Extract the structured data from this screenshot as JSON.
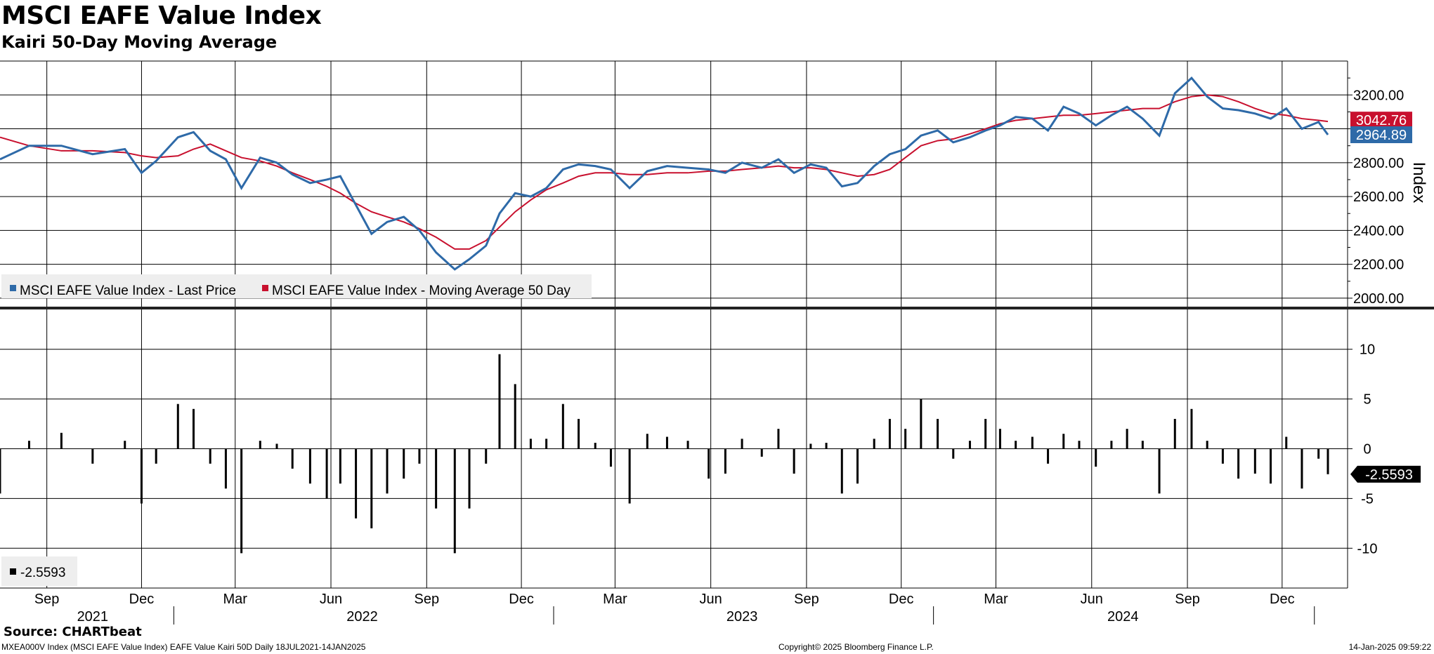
{
  "header": {
    "title": "MSCI EAFE Value Index",
    "subtitle": "Kairi 50-Day Moving Average"
  },
  "footer": {
    "source": "Source: CHARTbeat",
    "left": "MXEA000V Index (MSCI EAFE Value Index) EAFE Value Kairi 50D  Daily 18JUL2021-14JAN2025",
    "center": "Copyright© 2025 Bloomberg Finance L.P.",
    "right": "14-Jan-2025 09:59:22"
  },
  "colors": {
    "price": "#2e6aa8",
    "ma": "#c8102e",
    "kairi": "#000000",
    "grid": "#000000"
  },
  "chart_data": [
    {
      "type": "line",
      "title": "MSCI EAFE Value Index",
      "ylabel": "Index",
      "ylim": [
        1950,
        3400
      ],
      "yticks": [
        2000,
        2200,
        2400,
        2600,
        2800,
        3000,
        3200
      ],
      "ytick_labels": [
        "2000.00",
        "2200.00",
        "2400.00",
        "2600.00",
        "2800.00",
        "3000.00",
        "3200.00"
      ],
      "legend": [
        "MSCI EAFE Value Index - Last Price",
        "MSCI EAFE Value Index - Moving Average 50 Day"
      ],
      "last_labels": {
        "ma": "3042.76",
        "price": "2964.89"
      },
      "x": [
        "2021-07-18",
        "2021-08-15",
        "2021-09-15",
        "2021-10-15",
        "2021-11-15",
        "2021-12-01",
        "2021-12-15",
        "2022-01-05",
        "2022-01-20",
        "2022-02-05",
        "2022-02-20",
        "2022-03-07",
        "2022-03-25",
        "2022-04-10",
        "2022-04-25",
        "2022-05-12",
        "2022-05-28",
        "2022-06-10",
        "2022-06-25",
        "2022-07-10",
        "2022-07-25",
        "2022-08-10",
        "2022-08-25",
        "2022-09-10",
        "2022-09-28",
        "2022-10-12",
        "2022-10-28",
        "2022-11-10",
        "2022-11-25",
        "2022-12-10",
        "2022-12-25",
        "2023-01-10",
        "2023-01-25",
        "2023-02-10",
        "2023-02-25",
        "2023-03-15",
        "2023-04-01",
        "2023-04-20",
        "2023-05-10",
        "2023-05-30",
        "2023-06-15",
        "2023-07-01",
        "2023-07-20",
        "2023-08-05",
        "2023-08-20",
        "2023-09-05",
        "2023-09-20",
        "2023-10-05",
        "2023-10-20",
        "2023-11-05",
        "2023-11-20",
        "2023-12-05",
        "2023-12-20",
        "2024-01-05",
        "2024-01-20",
        "2024-02-05",
        "2024-02-20",
        "2024-03-05",
        "2024-03-20",
        "2024-04-05",
        "2024-04-20",
        "2024-05-05",
        "2024-05-20",
        "2024-06-05",
        "2024-06-20",
        "2024-07-05",
        "2024-07-20",
        "2024-08-05",
        "2024-08-20",
        "2024-09-05",
        "2024-09-20",
        "2024-10-05",
        "2024-10-20",
        "2024-11-05",
        "2024-11-20",
        "2024-12-05",
        "2024-12-20",
        "2025-01-05",
        "2025-01-14"
      ],
      "series": [
        {
          "name": "MSCI EAFE Value Index - Last Price",
          "values": [
            2820,
            2900,
            2900,
            2850,
            2880,
            2740,
            2810,
            2950,
            2980,
            2870,
            2820,
            2650,
            2830,
            2800,
            2730,
            2680,
            2700,
            2720,
            2550,
            2380,
            2450,
            2480,
            2400,
            2270,
            2170,
            2230,
            2310,
            2500,
            2620,
            2600,
            2650,
            2760,
            2790,
            2780,
            2760,
            2650,
            2750,
            2780,
            2770,
            2760,
            2740,
            2800,
            2770,
            2820,
            2740,
            2790,
            2770,
            2660,
            2680,
            2780,
            2850,
            2880,
            2960,
            2990,
            2920,
            2950,
            2990,
            3020,
            3070,
            3060,
            2990,
            3130,
            3090,
            3020,
            3080,
            3130,
            3060,
            2960,
            3210,
            3300,
            3190,
            3120,
            3110,
            3090,
            3060,
            3120,
            3000,
            3040,
            2965
          ]
        },
        {
          "name": "MSCI EAFE Value Index - Moving Average 50 Day",
          "values": [
            2950,
            2900,
            2870,
            2870,
            2860,
            2840,
            2830,
            2840,
            2880,
            2910,
            2870,
            2830,
            2810,
            2780,
            2740,
            2700,
            2660,
            2620,
            2560,
            2510,
            2480,
            2450,
            2410,
            2360,
            2290,
            2290,
            2340,
            2420,
            2510,
            2580,
            2640,
            2680,
            2720,
            2740,
            2740,
            2730,
            2730,
            2740,
            2740,
            2750,
            2750,
            2760,
            2770,
            2780,
            2770,
            2770,
            2760,
            2740,
            2720,
            2730,
            2760,
            2830,
            2900,
            2930,
            2940,
            2970,
            3000,
            3030,
            3050,
            3060,
            3070,
            3080,
            3080,
            3090,
            3100,
            3110,
            3120,
            3120,
            3160,
            3190,
            3200,
            3190,
            3160,
            3120,
            3090,
            3080,
            3060,
            3050,
            3043
          ]
        }
      ]
    },
    {
      "type": "bar",
      "title": "Kairi 50-Day Moving Average",
      "ylim": [
        -14,
        14
      ],
      "yticks": [
        -10,
        -5,
        0,
        5,
        10
      ],
      "ytick_labels": [
        "-10",
        "-5",
        "0",
        "5",
        "10"
      ],
      "legend": [
        "-2.5593"
      ],
      "last_label": "-2.5593",
      "x": [
        "2021-07-18",
        "2021-08-15",
        "2021-09-15",
        "2021-10-15",
        "2021-11-15",
        "2021-12-01",
        "2021-12-15",
        "2022-01-05",
        "2022-01-20",
        "2022-02-05",
        "2022-02-20",
        "2022-03-07",
        "2022-03-25",
        "2022-04-10",
        "2022-04-25",
        "2022-05-12",
        "2022-05-28",
        "2022-06-10",
        "2022-06-25",
        "2022-07-10",
        "2022-07-25",
        "2022-08-10",
        "2022-08-25",
        "2022-09-10",
        "2022-09-28",
        "2022-10-12",
        "2022-10-28",
        "2022-11-10",
        "2022-11-25",
        "2022-12-10",
        "2022-12-25",
        "2023-01-10",
        "2023-01-25",
        "2023-02-10",
        "2023-02-25",
        "2023-03-15",
        "2023-04-01",
        "2023-04-20",
        "2023-05-10",
        "2023-05-30",
        "2023-06-15",
        "2023-07-01",
        "2023-07-20",
        "2023-08-05",
        "2023-08-20",
        "2023-09-05",
        "2023-09-20",
        "2023-10-05",
        "2023-10-20",
        "2023-11-05",
        "2023-11-20",
        "2023-12-05",
        "2023-12-20",
        "2024-01-05",
        "2024-01-20",
        "2024-02-05",
        "2024-02-20",
        "2024-03-05",
        "2024-03-20",
        "2024-04-05",
        "2024-04-20",
        "2024-05-05",
        "2024-05-20",
        "2024-06-05",
        "2024-06-20",
        "2024-07-05",
        "2024-07-20",
        "2024-08-05",
        "2024-08-20",
        "2024-09-05",
        "2024-09-20",
        "2024-10-05",
        "2024-10-20",
        "2024-11-05",
        "2024-11-20",
        "2024-12-05",
        "2024-12-20",
        "2025-01-05",
        "2025-01-14"
      ],
      "values": [
        -4.5,
        0.8,
        1.6,
        -1.5,
        0.8,
        -5.5,
        -1.5,
        4.5,
        4.0,
        -1.5,
        -4.0,
        -10.5,
        0.8,
        0.5,
        -2.0,
        -3.5,
        -5.0,
        -3.5,
        -7.0,
        -8.0,
        -4.5,
        -3.0,
        -1.5,
        -6.0,
        -10.5,
        -6.0,
        -1.5,
        9.5,
        6.5,
        1.0,
        1.0,
        4.5,
        3.0,
        0.6,
        -1.8,
        -5.5,
        1.5,
        1.2,
        0.8,
        -3.0,
        -2.5,
        1.0,
        -0.8,
        2.0,
        -2.5,
        0.5,
        0.6,
        -4.5,
        -3.5,
        1.0,
        3.0,
        2.0,
        5.0,
        3.0,
        -1.0,
        0.8,
        3.0,
        2.0,
        0.8,
        1.2,
        -1.5,
        1.5,
        0.8,
        -1.8,
        0.8,
        2.0,
        0.8,
        -4.5,
        3.0,
        4.0,
        0.8,
        -1.5,
        -3.0,
        -2.5,
        -3.5,
        1.2,
        -4.0,
        -1.0,
        -2.5593
      ]
    }
  ],
  "xaxis": {
    "months": [
      {
        "label": "Sep",
        "date": "2021-09-01"
      },
      {
        "label": "Dec",
        "date": "2021-12-01"
      },
      {
        "label": "Mar",
        "date": "2022-03-01"
      },
      {
        "label": "Jun",
        "date": "2022-06-01"
      },
      {
        "label": "Sep",
        "date": "2022-09-01"
      },
      {
        "label": "Dec",
        "date": "2022-12-01"
      },
      {
        "label": "Mar",
        "date": "2023-03-01"
      },
      {
        "label": "Jun",
        "date": "2023-06-01"
      },
      {
        "label": "Sep",
        "date": "2023-09-01"
      },
      {
        "label": "Dec",
        "date": "2023-12-01"
      },
      {
        "label": "Mar",
        "date": "2024-03-01"
      },
      {
        "label": "Jun",
        "date": "2024-06-01"
      },
      {
        "label": "Sep",
        "date": "2024-09-01"
      },
      {
        "label": "Dec",
        "date": "2024-12-01"
      }
    ],
    "years": [
      {
        "label": "2021",
        "date": "2021-10-15"
      },
      {
        "label": "2022",
        "date": "2022-07-01"
      },
      {
        "label": "2023",
        "date": "2023-07-01"
      },
      {
        "label": "2024",
        "date": "2024-07-01"
      }
    ],
    "year_dividers": [
      "2022-01-01",
      "2023-01-01",
      "2024-01-01",
      "2025-01-01"
    ]
  }
}
